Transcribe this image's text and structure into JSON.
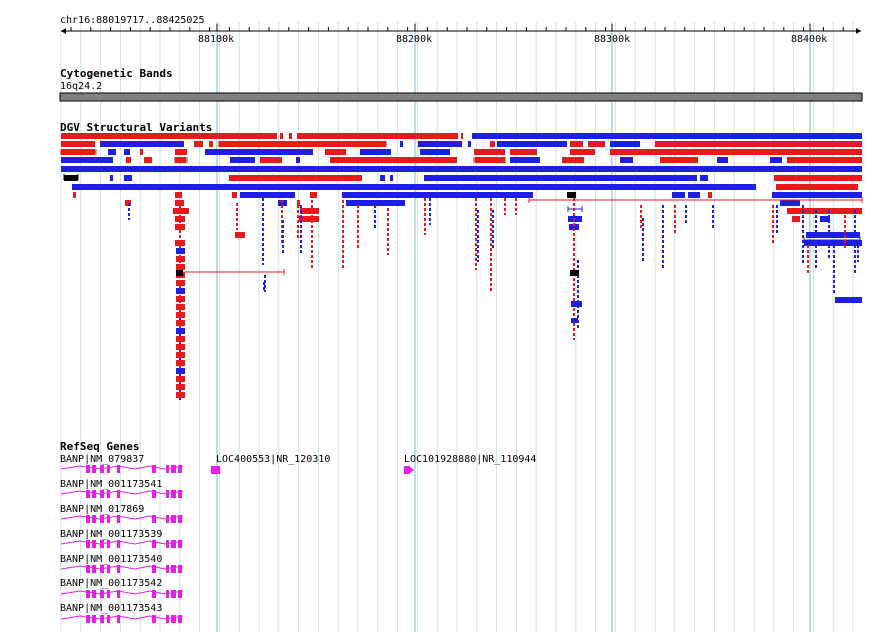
{
  "ruler": {
    "region_label": "chr16:88019717..88425025",
    "ticks": [
      "88100k",
      "88200k",
      "88300k",
      "88400k"
    ]
  },
  "tracks": {
    "cytoband": {
      "title": "Cytogenetic Bands",
      "band": "16q24.2"
    },
    "dgv": {
      "title": "DGV Structural Variants"
    },
    "refseq": {
      "title": "RefSeq Genes",
      "genes": [
        "BANP|NM_079837",
        "LOC400553|NR_120310",
        "LOC101928880|NR_110944",
        "BANP|NM_001173541",
        "BANP|NM_017869",
        "BANP|NM_001173539",
        "BANP|NM_001173540",
        "BANP|NM_001173542",
        "BANP|NM_001173543"
      ]
    }
  },
  "colors": {
    "gain": "#e41a1c",
    "loss": "#1f1fe0",
    "complex": "#000000",
    "gene": "#e61ee6",
    "grid": "#c8e2f0",
    "cytoband": "#808080"
  }
}
